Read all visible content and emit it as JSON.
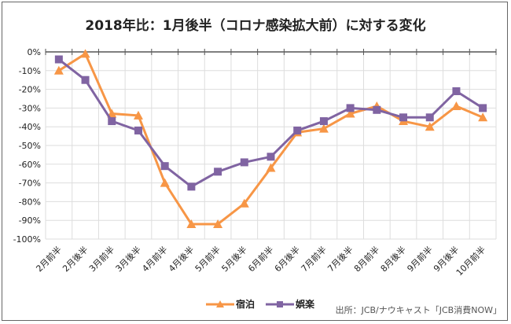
{
  "chart_data": {
    "type": "line",
    "title": "2018年比：1月後半（コロナ感染拡大前）に対する変化",
    "categories": [
      "2月前半",
      "2月後半",
      "3月前半",
      "3月後半",
      "4月前半",
      "4月後半",
      "5月前半",
      "5月後半",
      "6月前半",
      "6月後半",
      "7月前半",
      "7月後半",
      "8月前半",
      "8月後半",
      "9月前半",
      "9月後半",
      "10月前半"
    ],
    "series": [
      {
        "name": "宿泊",
        "color": "#f79646",
        "marker": "triangle",
        "values": [
          -10,
          -1,
          -33,
          -34,
          -70,
          -92,
          -92,
          -81,
          -62,
          -43,
          -41,
          -33,
          -29,
          -37,
          -40,
          -29,
          -35
        ]
      },
      {
        "name": "娯楽",
        "color": "#8064a2",
        "marker": "square",
        "values": [
          -4,
          -15,
          -37,
          -42,
          -61,
          -72,
          -64,
          -59,
          -56,
          -42,
          -37,
          -30,
          -31,
          -35,
          -35,
          -21,
          -30
        ]
      }
    ],
    "ylim": [
      -100,
      0
    ],
    "yticks": [
      0,
      -10,
      -20,
      -30,
      -40,
      -50,
      -60,
      -70,
      -80,
      -90,
      -100
    ],
    "ytick_format": "%",
    "grid": true,
    "legend_position": "bottom",
    "source": "出所：JCB/ナウキャスト「JCB消費NOW」"
  }
}
